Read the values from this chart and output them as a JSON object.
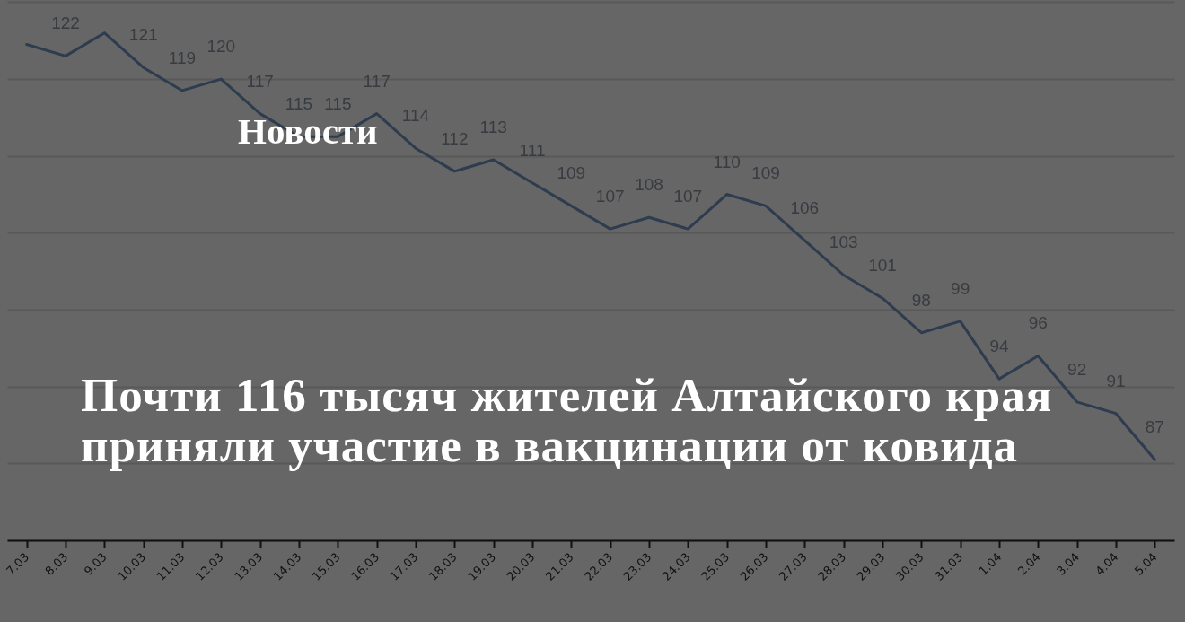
{
  "chart_data": {
    "type": "line",
    "title": "Почти 116 тысяч жителей Алтайского края приняли участие в вакцинации от ковида",
    "annotations": [
      "Новости"
    ],
    "categories": [
      "7.03",
      "8.03",
      "9.03",
      "10.03",
      "11.03",
      "12.03",
      "13.03",
      "14.03",
      "15.03",
      "16.03",
      "17.03",
      "18.03",
      "19.03",
      "20.03",
      "21.03",
      "22.03",
      "23.03",
      "24.03",
      "25.03",
      "26.03",
      "27.03",
      "28.03",
      "29.03",
      "30.03",
      "31.03",
      "1.04",
      "2.04",
      "3.04",
      "4.04",
      "5.04"
    ],
    "values": [
      123,
      122,
      124,
      121,
      119,
      120,
      117,
      115,
      115,
      117,
      114,
      112,
      113,
      111,
      109,
      107,
      108,
      107,
      110,
      109,
      106,
      103,
      101,
      98,
      99,
      94,
      96,
      92,
      91,
      87
    ],
    "value_labels": [
      null,
      "122",
      null,
      "121",
      "119",
      "120",
      "117",
      "115",
      "115",
      "117",
      "114",
      "112",
      "113",
      "111",
      "109",
      "107",
      "108",
      "107",
      "110",
      "109",
      "106",
      "103",
      "101",
      "98",
      "99",
      "94",
      "96",
      "92",
      "91",
      "87"
    ],
    "color": "#2e3c4f",
    "ylim": [
      80,
      126.7
    ],
    "yticks": [
      {
        "value": 80,
        "label": null
      },
      {
        "value": 86.7,
        "label": null
      },
      {
        "value": 93.3,
        "label": null
      },
      {
        "value": 100,
        "label": null
      },
      {
        "value": 106.7,
        "label": null
      },
      {
        "value": 113.3,
        "label": null
      },
      {
        "value": 120,
        "label": null
      },
      {
        "value": 126.7,
        "label": null
      }
    ],
    "grid": "y",
    "tick_labels": "x"
  }
}
